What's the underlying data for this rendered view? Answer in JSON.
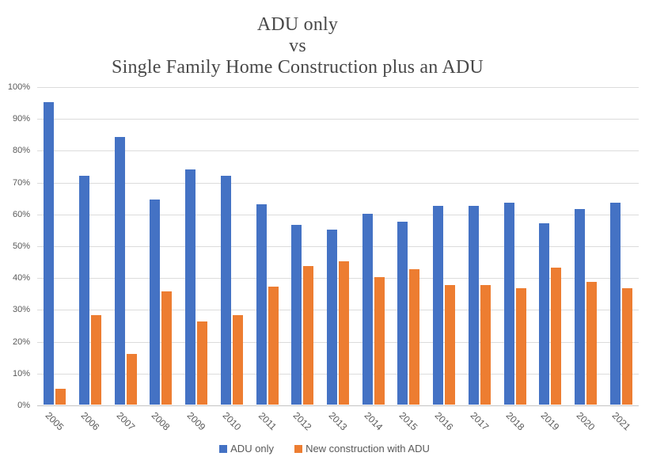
{
  "title": {
    "line1": "ADU only",
    "line2": "vs",
    "line3": "Single Family Home Construction plus an ADU"
  },
  "axes": {
    "y_ticks": [
      {
        "value": 0,
        "label": "0%"
      },
      {
        "value": 10,
        "label": "10%"
      },
      {
        "value": 20,
        "label": "20%"
      },
      {
        "value": 30,
        "label": "30%"
      },
      {
        "value": 40,
        "label": "40%"
      },
      {
        "value": 50,
        "label": "50%"
      },
      {
        "value": 60,
        "label": "60%"
      },
      {
        "value": 70,
        "label": "70%"
      },
      {
        "value": 80,
        "label": "80%"
      },
      {
        "value": 90,
        "label": "90%"
      },
      {
        "value": 100,
        "label": "100%"
      }
    ]
  },
  "colors": {
    "series_blue": "#4472C4",
    "series_orange": "#ED7D31",
    "gridline": "#dcdcdc",
    "axis_line": "#c3c3c3",
    "tick_text": "#595959",
    "title_text": "#484848"
  },
  "chart_data": {
    "type": "bar",
    "title": "ADU only vs Single Family Home Construction plus an ADU",
    "categories": [
      "2005",
      "2006",
      "2007",
      "2008",
      "2009",
      "2010",
      "2011",
      "2012",
      "2013",
      "2014",
      "2015",
      "2016",
      "2017",
      "2018",
      "2019",
      "2020",
      "2021"
    ],
    "series": [
      {
        "name": "ADU only",
        "color": "#4472C4",
        "values": [
          95,
          72,
          84,
          64.5,
          74,
          72,
          63,
          56.5,
          55,
          60,
          57.5,
          62.5,
          62.5,
          63.5,
          57,
          61.5,
          63.5
        ]
      },
      {
        "name": "New construction with ADU",
        "color": "#ED7D31",
        "values": [
          5,
          28,
          16,
          35.5,
          26,
          28,
          37,
          43.5,
          45,
          40,
          42.5,
          37.5,
          37.5,
          36.5,
          43,
          38.5,
          36.5
        ]
      }
    ],
    "xlabel": "",
    "ylabel": "",
    "ylim": [
      0,
      100
    ],
    "ytick_step": 10,
    "ytick_format": "percent",
    "grid": true,
    "legend_position": "bottom"
  }
}
